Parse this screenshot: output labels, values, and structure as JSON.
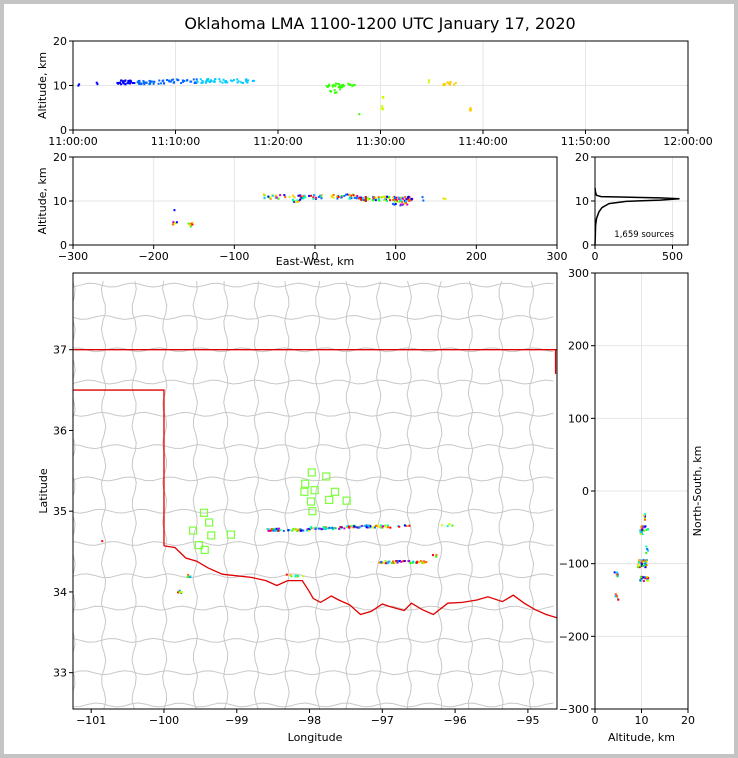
{
  "title": "Oklahoma LMA 1100-1200 UTC January 17, 2020",
  "colors": {
    "frame": "#c4c4c4",
    "state_border": "#e00000",
    "county_line": "#c8c8c8",
    "station": "#7cff3c",
    "grid": "#e6e6e6"
  },
  "chart_data": [
    {
      "id": "time-height",
      "type": "scatter",
      "ylabel": "Altitude, km",
      "ylim": [
        0,
        20
      ],
      "yticks": [
        "0",
        "10",
        "20"
      ],
      "xlim_minutes": [
        0,
        60
      ],
      "xtick_labels": [
        "11:00:00",
        "11:10:00",
        "11:20:00",
        "11:30:00",
        "11:40:00",
        "11:50:00",
        "12:00:00"
      ],
      "clusters": [
        {
          "t0": 0.4,
          "t1": 0.6,
          "alt": 10.2,
          "n": 2
        },
        {
          "t0": 2.2,
          "t1": 2.4,
          "alt": 10.3,
          "n": 2
        },
        {
          "t0": 4.2,
          "t1": 9.0,
          "alt": 10.7,
          "n": 60
        },
        {
          "t0": 9.0,
          "t1": 17.8,
          "alt": 11.0,
          "n": 70
        },
        {
          "t0": 24.5,
          "t1": 27.5,
          "alt": 10.0,
          "n": 28
        },
        {
          "t0": 25.0,
          "t1": 26.0,
          "alt": 8.8,
          "n": 6
        },
        {
          "t0": 27.8,
          "t1": 28.0,
          "alt": 4.0,
          "n": 1
        },
        {
          "t0": 30.0,
          "t1": 30.2,
          "alt": 7.0,
          "n": 3
        },
        {
          "t0": 30.0,
          "t1": 30.2,
          "alt": 5.0,
          "n": 4
        },
        {
          "t0": 34.5,
          "t1": 34.7,
          "alt": 11.0,
          "n": 2
        },
        {
          "t0": 36.0,
          "t1": 37.4,
          "alt": 10.4,
          "n": 16
        },
        {
          "t0": 38.6,
          "t1": 38.8,
          "alt": 4.6,
          "n": 4
        }
      ]
    },
    {
      "id": "ew-height",
      "type": "scatter",
      "xlabel": "East-West, km",
      "ylabel": "Altitude, km",
      "xlim": [
        -300,
        300
      ],
      "ylim": [
        0,
        20
      ],
      "xticks": [
        "-300",
        "-200",
        "-100",
        "0",
        "100",
        "200",
        "300"
      ],
      "yticks": [
        "0",
        "10",
        "20"
      ],
      "clusters": [
        {
          "x0": -65,
          "x1": 0,
          "alt": 11.0,
          "n": 40
        },
        {
          "x0": -30,
          "x1": -15,
          "alt": 10.2,
          "n": 12
        },
        {
          "x0": 0,
          "x1": 55,
          "alt": 11.0,
          "n": 40
        },
        {
          "x0": 55,
          "x1": 120,
          "alt": 10.5,
          "n": 90
        },
        {
          "x0": 95,
          "x1": 115,
          "alt": 9.5,
          "n": 20
        },
        {
          "x0": 130,
          "x1": 170,
          "alt": 10.5,
          "n": 4
        },
        {
          "x0": -178,
          "x1": -172,
          "alt": 5.0,
          "n": 6
        },
        {
          "x0": -158,
          "x1": -152,
          "alt": 4.6,
          "n": 6
        },
        {
          "x0": -177,
          "x1": -175,
          "alt": 7.5,
          "n": 1
        }
      ]
    },
    {
      "id": "alt-histogram",
      "type": "line",
      "xlim": [
        0,
        600
      ],
      "ylim": [
        0,
        20
      ],
      "xticks": [
        "0",
        "500"
      ],
      "yticks": [
        "0",
        "10",
        "20"
      ],
      "annotation": "1,659 sources",
      "profile": [
        [
          0,
          0
        ],
        [
          2,
          2
        ],
        [
          4,
          4.5
        ],
        [
          6,
          5
        ],
        [
          10,
          6
        ],
        [
          25,
          7.5
        ],
        [
          45,
          8.5
        ],
        [
          90,
          9.4
        ],
        [
          200,
          9.9
        ],
        [
          420,
          10.2
        ],
        [
          545,
          10.5
        ],
        [
          420,
          10.7
        ],
        [
          160,
          10.9
        ],
        [
          40,
          11.0
        ],
        [
          10,
          11.3
        ],
        [
          3,
          12.0
        ],
        [
          0,
          13.0
        ]
      ]
    },
    {
      "id": "plan-map",
      "type": "map",
      "xlabel": "Longitude",
      "ylabel": "Latitude",
      "xlim": [
        -101.25,
        -94.6
      ],
      "ylim": [
        32.55,
        37.95
      ],
      "xticks": [
        "-101",
        "-100",
        "-99",
        "-98",
        "-97",
        "-96",
        "-95"
      ],
      "yticks": [
        "33",
        "34",
        "35",
        "36",
        "37"
      ],
      "north_border_lat": 37.0,
      "panhandle_south_lat": 36.5,
      "panhandle_east_lon": -100.0,
      "red_river": [
        [
          -100.0,
          34.57
        ],
        [
          -99.85,
          34.55
        ],
        [
          -99.7,
          34.42
        ],
        [
          -99.55,
          34.38
        ],
        [
          -99.4,
          34.3
        ],
        [
          -99.2,
          34.22
        ],
        [
          -99.0,
          34.2
        ],
        [
          -98.8,
          34.18
        ],
        [
          -98.6,
          34.14
        ],
        [
          -98.45,
          34.08
        ],
        [
          -98.3,
          34.14
        ],
        [
          -98.1,
          34.14
        ],
        [
          -98.0,
          34.0
        ],
        [
          -97.95,
          33.92
        ],
        [
          -97.85,
          33.87
        ],
        [
          -97.7,
          33.95
        ],
        [
          -97.6,
          33.9
        ],
        [
          -97.45,
          33.84
        ],
        [
          -97.3,
          33.72
        ],
        [
          -97.15,
          33.76
        ],
        [
          -97.0,
          33.85
        ],
        [
          -96.9,
          33.82
        ],
        [
          -96.7,
          33.77
        ],
        [
          -96.6,
          33.86
        ],
        [
          -96.45,
          33.78
        ],
        [
          -96.3,
          33.72
        ],
        [
          -96.1,
          33.86
        ],
        [
          -95.9,
          33.87
        ],
        [
          -95.7,
          33.9
        ],
        [
          -95.55,
          33.94
        ],
        [
          -95.35,
          33.88
        ],
        [
          -95.2,
          33.96
        ],
        [
          -95.05,
          33.86
        ],
        [
          -94.9,
          33.78
        ],
        [
          -94.75,
          33.72
        ],
        [
          -94.6,
          33.68
        ]
      ],
      "stations": [
        [
          -97.97,
          35.48
        ],
        [
          -97.77,
          35.43
        ],
        [
          -98.06,
          35.34
        ],
        [
          -97.93,
          35.26
        ],
        [
          -98.07,
          35.24
        ],
        [
          -97.65,
          35.24
        ],
        [
          -97.98,
          35.12
        ],
        [
          -97.73,
          35.14
        ],
        [
          -97.49,
          35.13
        ],
        [
          -97.96,
          35.0
        ],
        [
          -99.45,
          34.98
        ],
        [
          -99.38,
          34.86
        ],
        [
          -99.6,
          34.76
        ],
        [
          -99.35,
          34.7
        ],
        [
          -99.08,
          34.71
        ],
        [
          -99.52,
          34.58
        ],
        [
          -99.44,
          34.52
        ]
      ],
      "source_clusters": [
        {
          "lon0": -98.6,
          "lon1": -98.0,
          "lat": 34.77,
          "n": 45
        },
        {
          "lon0": -98.0,
          "lon1": -97.5,
          "lat": 34.79,
          "n": 35
        },
        {
          "lon0": -97.5,
          "lon1": -96.9,
          "lat": 34.81,
          "n": 60
        },
        {
          "lon0": -96.8,
          "lon1": -96.6,
          "lat": 34.82,
          "n": 6
        },
        {
          "lon0": -96.2,
          "lon1": -96.05,
          "lat": 34.83,
          "n": 4
        },
        {
          "lon0": -97.05,
          "lon1": -96.4,
          "lat": 34.37,
          "n": 45
        },
        {
          "lon0": -98.35,
          "lon1": -98.1,
          "lat": 34.2,
          "n": 8
        },
        {
          "lon0": -99.7,
          "lon1": -99.6,
          "lat": 34.2,
          "n": 5
        },
        {
          "lon0": -99.85,
          "lon1": -99.75,
          "lat": 34.0,
          "n": 6
        },
        {
          "lon0": -100.9,
          "lon1": -100.85,
          "lat": 34.62,
          "n": 1
        },
        {
          "lon0": -96.35,
          "lon1": -96.25,
          "lat": 34.45,
          "n": 3
        }
      ]
    },
    {
      "id": "height-ns",
      "type": "scatter",
      "xlabel": "Altitude, km",
      "ylabel": "North-South, km",
      "xlim": [
        0,
        20
      ],
      "ylim": [
        -300,
        300
      ],
      "xticks": [
        "0",
        "10",
        "20"
      ],
      "yticks": [
        "-300",
        "-200",
        "-100",
        "0",
        "100",
        "200",
        "300"
      ],
      "clusters": [
        {
          "a0": 9.5,
          "a1": 11.3,
          "ns0": -48,
          "ns1": -60,
          "n": 20
        },
        {
          "a0": 9.0,
          "a1": 11.0,
          "ns0": -95,
          "ns1": -105,
          "n": 40
        },
        {
          "a0": 9.5,
          "a1": 11.3,
          "ns0": -118,
          "ns1": -124,
          "n": 20
        },
        {
          "a0": 10.3,
          "a1": 10.6,
          "ns0": -25,
          "ns1": -45,
          "n": 5
        },
        {
          "a0": 3.8,
          "a1": 5.0,
          "ns0": -112,
          "ns1": -118,
          "n": 6
        },
        {
          "a0": 4.0,
          "a1": 5.2,
          "ns0": -140,
          "ns1": -150,
          "n": 6
        },
        {
          "a0": 10.8,
          "a1": 11.2,
          "ns0": -65,
          "ns1": -88,
          "n": 4
        }
      ]
    }
  ]
}
